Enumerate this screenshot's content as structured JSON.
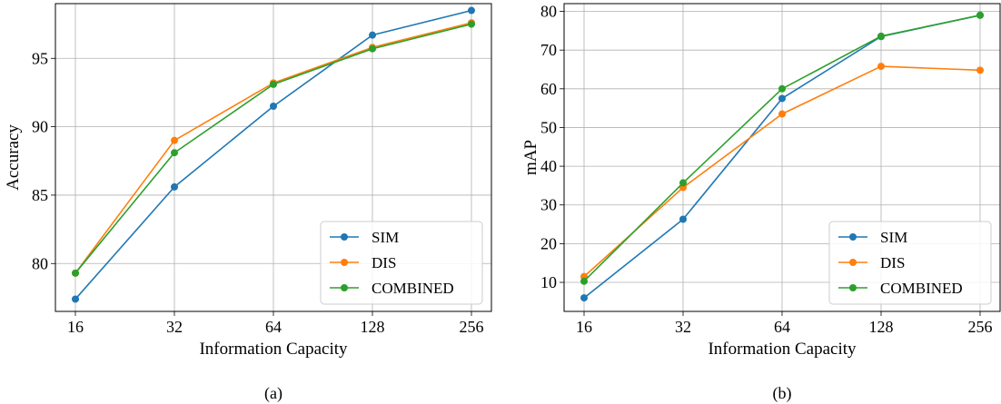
{
  "chart_data": [
    {
      "type": "line",
      "caption": "(a)",
      "xlabel": "Information Capacity",
      "ylabel": "Accuracy",
      "x_scale": "log2",
      "x": [
        16,
        32,
        64,
        128,
        256
      ],
      "x_tick_labels": [
        "16",
        "32",
        "64",
        "128",
        "256"
      ],
      "ylim": [
        76.5,
        99
      ],
      "y_ticks": [
        80,
        85,
        90,
        95
      ],
      "y_tick_labels": [
        "80",
        "85",
        "90",
        "95"
      ],
      "grid": true,
      "legend_position": "bottom-right",
      "series": [
        {
          "name": "SIM",
          "color": "#1f77b4",
          "values": [
            77.4,
            85.6,
            91.5,
            96.7,
            98.5
          ]
        },
        {
          "name": "DIS",
          "color": "#ff7f0e",
          "values": [
            79.3,
            89.0,
            93.2,
            95.8,
            97.6
          ]
        },
        {
          "name": "COMBINED",
          "color": "#2ca02c",
          "values": [
            79.3,
            88.1,
            93.1,
            95.7,
            97.5
          ]
        }
      ]
    },
    {
      "type": "line",
      "caption": "(b)",
      "xlabel": "Information Capacity",
      "ylabel": "mAP",
      "x_scale": "log2",
      "x": [
        16,
        32,
        64,
        128,
        256
      ],
      "x_tick_labels": [
        "16",
        "32",
        "64",
        "128",
        "256"
      ],
      "ylim": [
        2.5,
        82
      ],
      "y_ticks": [
        10,
        20,
        30,
        40,
        50,
        60,
        70,
        80
      ],
      "y_tick_labels": [
        "10",
        "20",
        "30",
        "40",
        "50",
        "60",
        "70",
        "80"
      ],
      "grid": true,
      "legend_position": "bottom-right",
      "series": [
        {
          "name": "SIM",
          "color": "#1f77b4",
          "values": [
            6.0,
            26.3,
            57.5,
            73.5,
            79.0
          ]
        },
        {
          "name": "DIS",
          "color": "#ff7f0e",
          "values": [
            11.5,
            34.5,
            53.5,
            65.8,
            64.8
          ]
        },
        {
          "name": "COMBINED",
          "color": "#2ca02c",
          "values": [
            10.3,
            35.7,
            60.0,
            73.6,
            79.0
          ]
        }
      ]
    }
  ]
}
